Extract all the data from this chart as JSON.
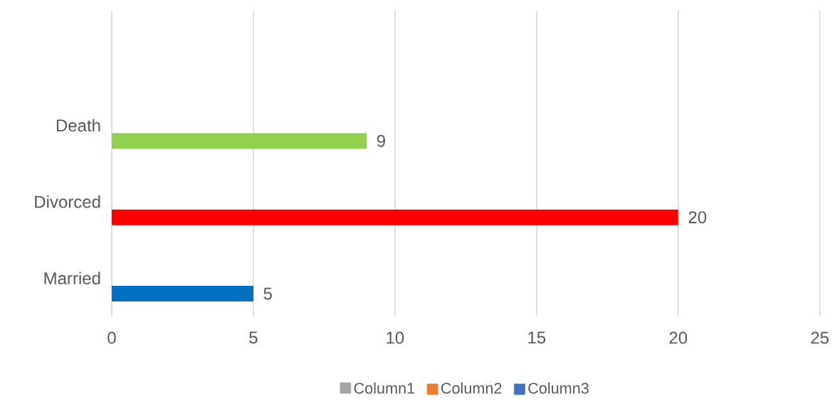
{
  "chart_data": {
    "type": "bar",
    "orientation": "horizontal",
    "categories": [
      null,
      "Death",
      "Divorced",
      "Married"
    ],
    "series": [
      {
        "name": "Column1",
        "color": "#a5a5a5",
        "colors": [
          "#a5a5a5",
          "#92d050",
          "#ff0000",
          "#0070c0"
        ],
        "values": [
          null,
          9,
          20,
          5
        ]
      },
      {
        "name": "Column2",
        "color": "#ed7d31",
        "values": [
          null,
          null,
          null,
          null
        ]
      },
      {
        "name": "Column3",
        "color": "#4472c4",
        "values": [
          null,
          null,
          null,
          null
        ]
      }
    ],
    "xlim": [
      0,
      25
    ],
    "xticks": [
      0,
      5,
      10,
      15,
      20,
      25
    ],
    "grid": "x",
    "legend": "bottom",
    "data_labels": true
  }
}
